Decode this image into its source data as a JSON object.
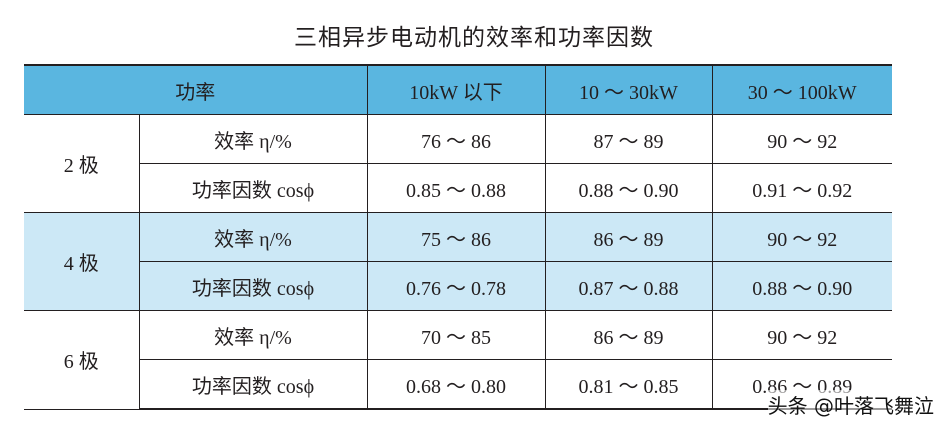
{
  "title": "三相异步电动机的效率和功率因数",
  "header": {
    "power": "功率",
    "col1": "10kW 以下",
    "col2": "10 ～ 30kW",
    "col3": "30 ～ 100kW"
  },
  "rows": [
    {
      "pole": "2 极",
      "efficiency": {
        "label": "效率 η/%",
        "values": [
          "76 ～ 86",
          "87 ～ 89",
          "90 ～ 92"
        ]
      },
      "power_factor": {
        "label": "功率因数 cosϕ",
        "values": [
          "0.85 ～ 0.88",
          "0.88 ～ 0.90",
          "0.91 ～ 0.92"
        ]
      }
    },
    {
      "pole": "4 极",
      "efficiency": {
        "label": "效率 η/%",
        "values": [
          "75 ～ 86",
          "86 ～ 89",
          "90 ～ 92"
        ]
      },
      "power_factor": {
        "label": "功率因数 cosϕ",
        "values": [
          "0.76 ～ 0.78",
          "0.87 ～ 0.88",
          "0.88 ～ 0.90"
        ]
      }
    },
    {
      "pole": "6 极",
      "efficiency": {
        "label": "效率 η/%",
        "values": [
          "70 ～ 85",
          "86 ～ 89",
          "90 ～ 92"
        ]
      },
      "power_factor": {
        "label": "功率因数 cosϕ",
        "values": [
          "0.68 ～ 0.80",
          "0.81 ～ 0.85",
          "0.86 ～ 0.89"
        ]
      }
    }
  ],
  "watermark": "头条 @叶落飞舞泣",
  "colors": {
    "header_bg": "#5ab6e0",
    "band_bg": "#cce8f6",
    "text": "#231f20"
  }
}
